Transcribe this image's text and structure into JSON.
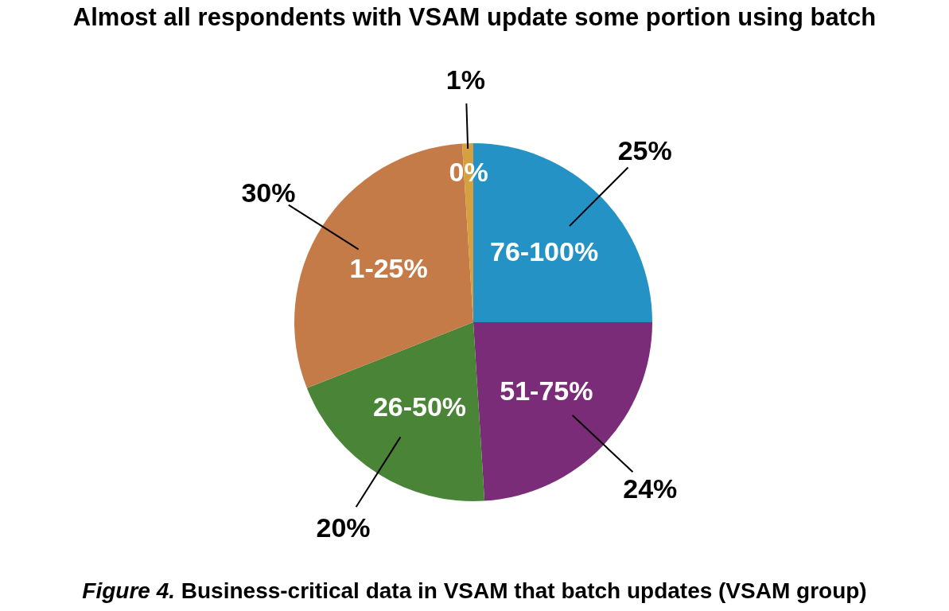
{
  "chart_data": {
    "type": "pie",
    "title": "Almost all respondents with VSAM update some portion using batch",
    "categories": [
      "76-100%",
      "51-75%",
      "26-50%",
      "1-25%",
      "0%"
    ],
    "values": [
      25,
      24,
      20,
      30,
      1
    ],
    "value_labels": [
      "25%",
      "24%",
      "20%",
      "30%",
      "1%"
    ],
    "colors": [
      "#2492c4",
      "#7b2c78",
      "#4a8436",
      "#c57b48",
      "#d4a040"
    ],
    "annotations": [
      "Figure 4.",
      "Business-critical data in VSAM that batch updates (VSAM group)"
    ]
  }
}
